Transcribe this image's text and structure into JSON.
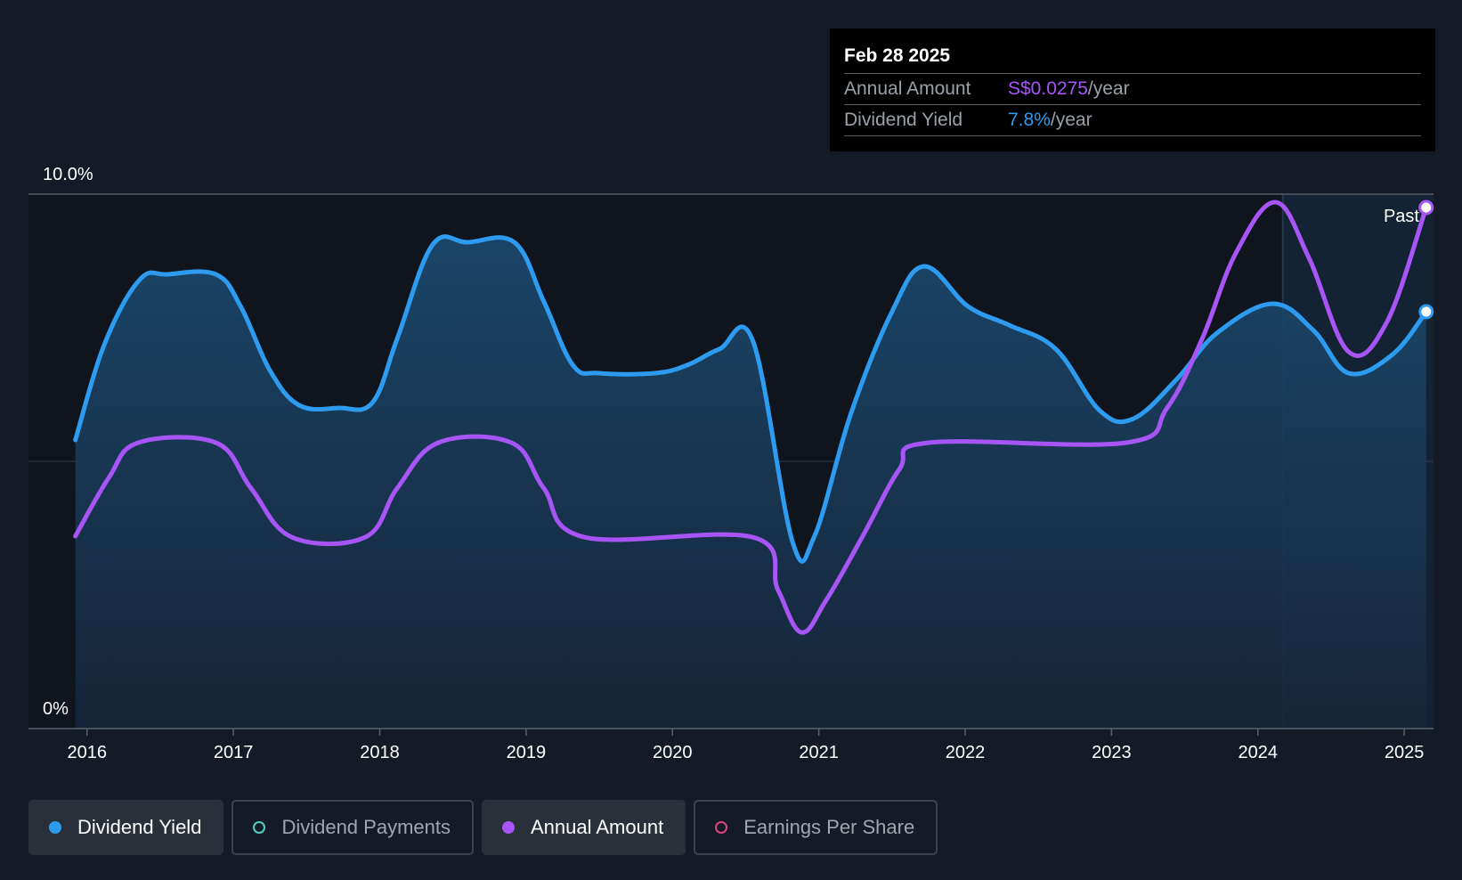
{
  "tooltip": {
    "date": "Feb 28 2025",
    "rows": [
      {
        "label": "Annual Amount",
        "value": "S$0.0275",
        "unit": "/year"
      },
      {
        "label": "Dividend Yield",
        "value": "7.8%",
        "unit": "/year"
      }
    ]
  },
  "past_label": "Past",
  "legend": [
    {
      "label": "Dividend Yield",
      "color": "#2d9cf0",
      "active": true,
      "filled": true
    },
    {
      "label": "Dividend Payments",
      "color": "#4fd1c5",
      "active": false,
      "filled": false
    },
    {
      "label": "Annual Amount",
      "color": "#a855f7",
      "active": true,
      "filled": true
    },
    {
      "label": "Earnings Per Share",
      "color": "#d9467a",
      "active": false,
      "filled": false
    }
  ],
  "chart_data": {
    "type": "line",
    "title": "",
    "xlabel": "",
    "ylabel": "",
    "xlim": [
      2015.6,
      2025.2
    ],
    "ylim": [
      0,
      10
    ],
    "y_ticks": [
      "0%",
      "10.0%"
    ],
    "x_ticks": [
      "2016",
      "2017",
      "2018",
      "2019",
      "2020",
      "2021",
      "2022",
      "2023",
      "2024",
      "2025"
    ],
    "past_from": 2024.17,
    "series": [
      {
        "name": "Dividend Yield",
        "color": "#2d9cf0",
        "area": true,
        "points": [
          [
            2015.92,
            5.4
          ],
          [
            2016.12,
            7.2
          ],
          [
            2016.36,
            8.4
          ],
          [
            2016.55,
            8.5
          ],
          [
            2016.88,
            8.5
          ],
          [
            2017.05,
            7.9
          ],
          [
            2017.25,
            6.7
          ],
          [
            2017.45,
            6.05
          ],
          [
            2017.72,
            6.0
          ],
          [
            2017.95,
            6.1
          ],
          [
            2018.12,
            7.3
          ],
          [
            2018.36,
            9.05
          ],
          [
            2018.6,
            9.1
          ],
          [
            2018.92,
            9.1
          ],
          [
            2019.12,
            8.0
          ],
          [
            2019.32,
            6.8
          ],
          [
            2019.5,
            6.65
          ],
          [
            2019.88,
            6.65
          ],
          [
            2020.1,
            6.8
          ],
          [
            2020.32,
            7.1
          ],
          [
            2020.55,
            7.25
          ],
          [
            2020.82,
            3.5
          ],
          [
            2020.97,
            3.6
          ],
          [
            2021.22,
            5.9
          ],
          [
            2021.5,
            7.8
          ],
          [
            2021.72,
            8.65
          ],
          [
            2022.02,
            7.9
          ],
          [
            2022.3,
            7.55
          ],
          [
            2022.62,
            7.1
          ],
          [
            2022.92,
            5.95
          ],
          [
            2023.15,
            5.8
          ],
          [
            2023.45,
            6.55
          ],
          [
            2023.72,
            7.4
          ],
          [
            2024.1,
            7.95
          ],
          [
            2024.38,
            7.45
          ],
          [
            2024.62,
            6.65
          ],
          [
            2024.92,
            7.0
          ],
          [
            2025.15,
            7.8
          ]
        ]
      },
      {
        "name": "Annual Amount",
        "color": "#a855f7",
        "area": false,
        "points": [
          [
            2015.92,
            3.6
          ],
          [
            2016.15,
            4.7
          ],
          [
            2016.35,
            5.35
          ],
          [
            2016.88,
            5.35
          ],
          [
            2017.12,
            4.5
          ],
          [
            2017.4,
            3.58
          ],
          [
            2017.9,
            3.58
          ],
          [
            2018.12,
            4.5
          ],
          [
            2018.4,
            5.35
          ],
          [
            2018.9,
            5.35
          ],
          [
            2019.12,
            4.5
          ],
          [
            2019.4,
            3.58
          ],
          [
            2020.55,
            3.58
          ],
          [
            2020.72,
            2.6
          ],
          [
            2020.88,
            1.8
          ],
          [
            2021.05,
            2.4
          ],
          [
            2021.3,
            3.6
          ],
          [
            2021.55,
            4.85
          ],
          [
            2021.75,
            5.35
          ],
          [
            2023.1,
            5.35
          ],
          [
            2023.38,
            6.0
          ],
          [
            2023.62,
            7.3
          ],
          [
            2023.85,
            8.9
          ],
          [
            2024.12,
            9.85
          ],
          [
            2024.35,
            8.8
          ],
          [
            2024.62,
            7.05
          ],
          [
            2024.88,
            7.6
          ],
          [
            2025.15,
            9.75
          ]
        ]
      }
    ]
  }
}
